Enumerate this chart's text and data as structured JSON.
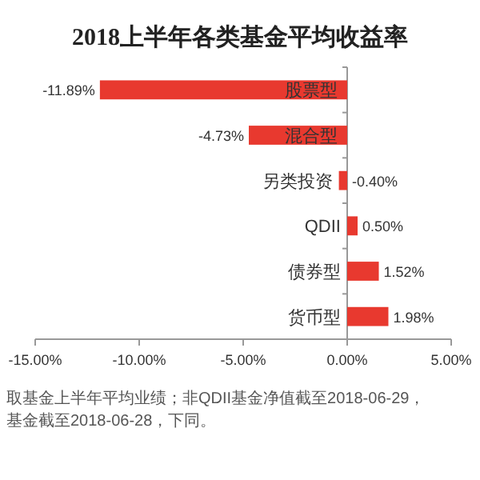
{
  "chart_data": {
    "type": "bar",
    "orientation": "horizontal",
    "title": "2018上半年各类基金平均收益率",
    "categories": [
      "股票型",
      "混合型",
      "另类投资",
      "QDII",
      "债券型",
      "货币型"
    ],
    "values": [
      -11.89,
      -4.73,
      -0.4,
      0.5,
      1.52,
      1.98
    ],
    "value_labels": [
      "-11.89%",
      "-4.73%",
      "-0.40%",
      "0.50%",
      "1.52%",
      "1.98%"
    ],
    "color": "#e8392f",
    "xlim": [
      -15,
      5
    ],
    "xticks": [
      {
        "value": -15,
        "label": "-15.00%"
      },
      {
        "value": -10,
        "label": "-10.00%"
      },
      {
        "value": -5,
        "label": "-5.00%"
      },
      {
        "value": 0,
        "label": "0.00%"
      },
      {
        "value": 5,
        "label": "5.00%"
      }
    ],
    "grid": false,
    "annotations": [
      "取基金上半年平均业绩；非QDII基金净值截至2018-06-29，",
      "基金截至2018-06-28，下同。"
    ]
  }
}
